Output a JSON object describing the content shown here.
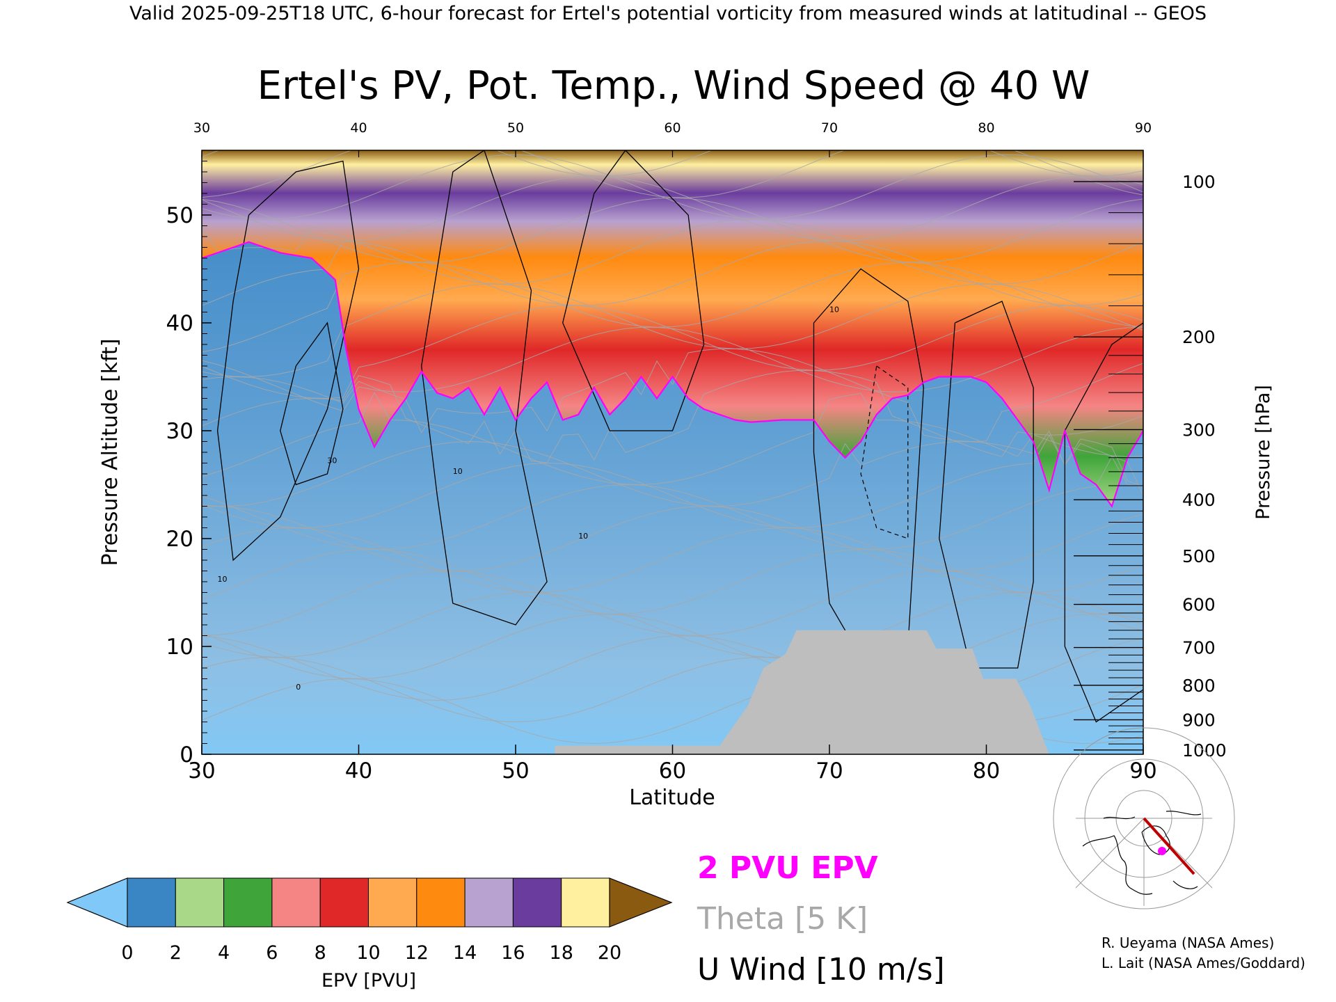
{
  "header": {
    "valid_line": "Valid 2025-09-25T18 UTC, 6-hour forecast for Ertel's potential vorticity from measured winds at latitudinal -- GEOS"
  },
  "chart_data": {
    "type": "heatmap",
    "title": "Ertel's PV, Pot. Temp., Wind Speed @ 40 W",
    "xlabel": "Latitude",
    "ylabel": "Pressure Altitude [kft]",
    "y2label": "Pressure [hPa]",
    "xlim": [
      30,
      90
    ],
    "ylim": [
      0,
      56
    ],
    "x_ticks": [
      "30",
      "40",
      "50",
      "60",
      "70",
      "80",
      "90"
    ],
    "top_x_ticks": [
      "30",
      "40",
      "50",
      "60",
      "70",
      "80",
      "90"
    ],
    "y_ticks": [
      "0",
      "10",
      "20",
      "30",
      "40",
      "50"
    ],
    "pressure_ticks": [
      {
        "label": "100",
        "alt_kft": 53.1
      },
      {
        "label": "200",
        "alt_kft": 38.7
      },
      {
        "label": "300",
        "alt_kft": 30.1
      },
      {
        "label": "400",
        "alt_kft": 23.6
      },
      {
        "label": "500",
        "alt_kft": 18.4
      },
      {
        "label": "600",
        "alt_kft": 13.9
      },
      {
        "label": "700",
        "alt_kft": 9.9
      },
      {
        "label": "800",
        "alt_kft": 6.4
      },
      {
        "label": "900",
        "alt_kft": 3.2
      },
      {
        "label": "1000",
        "alt_kft": 0.4
      }
    ],
    "tropopause_2pvu_kft": {
      "lat": [
        30,
        31,
        33,
        35,
        37,
        38.5,
        39.2,
        40,
        41,
        42,
        43,
        44,
        45,
        46,
        47,
        48,
        49,
        50,
        51,
        52,
        53,
        54,
        55,
        56,
        57,
        58,
        59,
        60,
        61,
        62,
        63,
        64,
        65,
        66,
        67,
        68,
        69,
        70,
        71,
        72,
        73,
        74,
        75,
        76,
        77,
        78,
        79,
        80,
        81,
        82,
        83,
        84,
        85,
        86,
        87,
        88,
        89,
        90
      ],
      "alt": [
        46,
        46.5,
        47.5,
        46.5,
        46,
        44,
        37.5,
        32,
        28.5,
        31,
        33,
        35.5,
        33.5,
        33,
        34,
        31.5,
        34,
        31,
        33,
        34.5,
        31,
        31.5,
        34,
        31.5,
        33,
        35,
        33,
        35,
        33,
        32,
        31.5,
        31,
        30.8,
        30.9,
        31,
        31,
        31,
        29,
        27.5,
        29,
        31.5,
        33,
        33.3,
        34.5,
        35,
        35,
        35,
        34.5,
        33,
        31,
        29,
        24.5,
        30,
        26,
        25,
        23,
        27.5,
        30
      ]
    },
    "orography_kft": {
      "lat": [
        52.5,
        53,
        63,
        64.8,
        65.8,
        67.2,
        67.9,
        68.8,
        76.2,
        76.8,
        79.1,
        79.8,
        81.9,
        82.8,
        84
      ],
      "alt": [
        0.8,
        0.8,
        0.8,
        4.5,
        8,
        9.3,
        11.5,
        11.5,
        11.5,
        9.8,
        9.8,
        7,
        7,
        4.5,
        0
      ]
    },
    "theta_levels_K": [
      "320",
      "350",
      "360",
      "370",
      "380",
      "390",
      "400",
      "410",
      "420"
    ],
    "wind_contour_labels": [
      "10",
      "30",
      "10",
      "10",
      "10",
      "0"
    ],
    "colorbar": {
      "label": "EPV [PVU]",
      "ticks": [
        "0",
        "2",
        "4",
        "6",
        "8",
        "10",
        "12",
        "14",
        "16",
        "18",
        "20"
      ],
      "range": [
        0,
        20
      ],
      "colors": [
        "#80c8f8",
        "#3a85c4",
        "#a8d888",
        "#3fa53a",
        "#f58585",
        "#e02828",
        "#ffaa50",
        "#ff8a10",
        "#b8a2d0",
        "#6a3c9e",
        "#fff0a0",
        "#8a5a10"
      ]
    },
    "legend": [
      "2 PVU EPV",
      "Theta [5 K]",
      "U Wind [10 m/s]"
    ],
    "legend_colors": {
      "epv": "#ff00ff",
      "theta": "#a8a8a8",
      "wind": "#000000"
    },
    "missing_color": "#bebebe"
  },
  "credits": {
    "line1": "R. Ueyama (NASA Ames)",
    "line2": "L. Lait (NASA Ames/Goddard)"
  }
}
